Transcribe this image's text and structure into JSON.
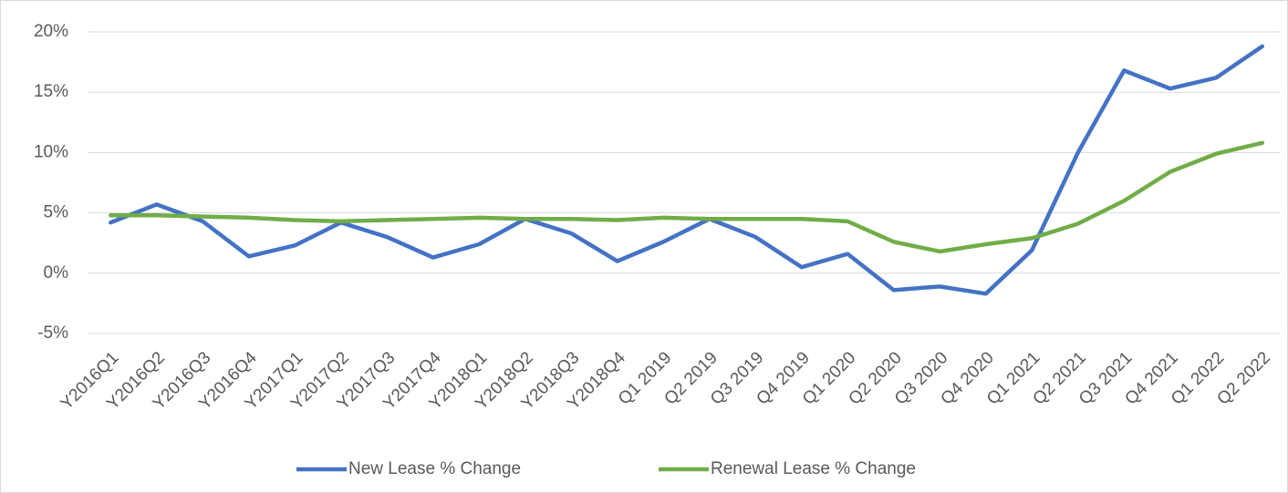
{
  "chart_data": {
    "type": "line",
    "categories": [
      "Y2016Q1",
      "Y2016Q2",
      "Y2016Q3",
      "Y2016Q4",
      "Y2017Q1",
      "Y2017Q2",
      "Y2017Q3",
      "Y2017Q4",
      "Y2018Q1",
      "Y2018Q2",
      "Y2018Q3",
      "Y2018Q4",
      "Q1 2019",
      "Q2 2019",
      "Q3 2019",
      "Q4 2019",
      "Q1 2020",
      "Q2 2020",
      "Q3 2020",
      "Q4 2020",
      "Q1 2021",
      "Q2 2021",
      "Q3 2021",
      "Q4 2021",
      "Q1 2022",
      "Q2 2022"
    ],
    "series": [
      {
        "name": "New Lease % Change",
        "color": "#4472c4",
        "values": [
          4.2,
          5.7,
          4.3,
          1.4,
          2.3,
          4.2,
          3.0,
          1.3,
          2.4,
          4.5,
          3.3,
          1.0,
          2.6,
          4.5,
          3.0,
          0.5,
          1.6,
          -1.4,
          -1.1,
          -1.7,
          1.9,
          10.0,
          16.8,
          15.3,
          16.2,
          18.8
        ]
      },
      {
        "name": "Renewal Lease % Change",
        "color": "#70ad47",
        "values": [
          4.8,
          4.8,
          4.7,
          4.6,
          4.4,
          4.3,
          4.4,
          4.5,
          4.6,
          4.5,
          4.5,
          4.4,
          4.6,
          4.5,
          4.5,
          4.5,
          4.3,
          2.6,
          1.8,
          2.4,
          2.9,
          4.1,
          6.0,
          8.4,
          9.9,
          10.8
        ]
      }
    ],
    "ylim": [
      -5,
      20
    ],
    "yticks": [
      {
        "value": -5,
        "label": "-5%"
      },
      {
        "value": 0,
        "label": "0%"
      },
      {
        "value": 5,
        "label": "5%"
      },
      {
        "value": 10,
        "label": "10%"
      },
      {
        "value": 15,
        "label": "15%"
      },
      {
        "value": 20,
        "label": "20%"
      }
    ],
    "grid": true,
    "legend": "bottom"
  }
}
